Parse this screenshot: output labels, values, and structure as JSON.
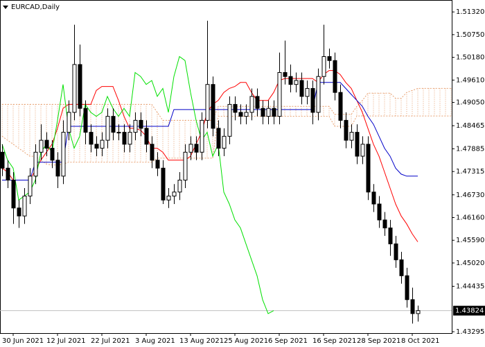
{
  "chart_data": {
    "type": "candlestick",
    "title": "EURCAD,Daily",
    "categories": [
      null,
      null,
      "30 Jun 2021",
      null,
      null,
      null,
      null,
      null,
      null,
      null,
      "12 Jul 2021",
      null,
      null,
      null,
      null,
      null,
      null,
      null,
      "22 Jul 2021",
      null,
      null,
      null,
      null,
      null,
      null,
      null,
      "3 Aug 2021",
      null,
      null,
      null,
      null,
      null,
      null,
      null,
      "13 Aug 2021",
      null,
      null,
      null,
      null,
      null,
      null,
      null,
      "25 Aug 2021",
      null,
      null,
      null,
      null,
      null,
      null,
      null,
      "6 Sep 2021",
      null,
      null,
      null,
      null,
      null,
      null,
      null,
      "16 Sep 2021",
      null,
      null,
      null,
      null,
      null,
      null,
      null,
      "28 Sep 2021",
      null,
      null,
      null,
      null,
      null,
      null,
      null,
      "8 Oct 2021",
      null,
      null,
      null,
      null,
      null,
      null,
      null
    ],
    "open": [
      1.478,
      1.474,
      1.471,
      1.464,
      1.462,
      1.467,
      1.472,
      1.478,
      1.481,
      1.479,
      1.476,
      1.472,
      1.483,
      1.488,
      1.5,
      1.489,
      1.483,
      1.48,
      1.479,
      1.481,
      1.487,
      1.483,
      1.483,
      1.48,
      1.483,
      1.486,
      1.484,
      1.48,
      1.476,
      1.474,
      1.466,
      1.467,
      1.468,
      1.471,
      1.478,
      1.48,
      1.478,
      1.486,
      1.495,
      1.484,
      1.479,
      1.482,
      1.49,
      1.488,
      1.487,
      1.488,
      1.492,
      1.489,
      1.487,
      1.489,
      1.487,
      1.498,
      1.497,
      1.495,
      1.496,
      1.492,
      1.494,
      1.488,
      1.497,
      1.502,
      1.501,
      1.493,
      1.486,
      1.481,
      1.483,
      1.477,
      1.48,
      1.468,
      1.465,
      1.461,
      1.459,
      1.455,
      1.451,
      1.447,
      1.441,
      1.4375,
      null,
      null,
      null,
      null,
      null,
      null
    ],
    "high": [
      1.48,
      1.476,
      1.473,
      1.466,
      1.469,
      1.474,
      1.48,
      1.485,
      1.483,
      1.481,
      1.478,
      1.486,
      1.491,
      1.51,
      1.505,
      1.491,
      1.485,
      1.482,
      1.483,
      1.489,
      1.489,
      1.485,
      1.485,
      1.485,
      1.488,
      1.488,
      1.486,
      1.482,
      1.478,
      1.476,
      1.469,
      1.47,
      1.473,
      1.48,
      1.482,
      1.482,
      1.488,
      1.511,
      1.497,
      1.486,
      1.484,
      1.492,
      1.492,
      1.49,
      1.49,
      1.494,
      1.494,
      1.491,
      1.491,
      1.491,
      1.503,
      1.506,
      1.5,
      1.498,
      1.498,
      1.496,
      1.496,
      1.499,
      1.51,
      1.504,
      1.503,
      1.495,
      1.488,
      1.485,
      1.485,
      1.482,
      1.482,
      1.47,
      1.467,
      1.463,
      1.461,
      1.457,
      1.453,
      1.449,
      1.444,
      1.4395,
      null,
      null,
      null,
      null,
      null,
      null
    ],
    "low": [
      1.472,
      1.469,
      1.46,
      1.459,
      1.46,
      1.465,
      1.47,
      1.476,
      1.477,
      1.474,
      1.469,
      1.47,
      1.481,
      1.486,
      1.487,
      1.48,
      1.478,
      1.477,
      1.477,
      1.479,
      1.481,
      1.481,
      1.478,
      1.478,
      1.481,
      1.482,
      1.478,
      1.474,
      1.472,
      1.465,
      1.464,
      1.465,
      1.466,
      1.469,
      1.476,
      1.476,
      1.476,
      1.484,
      1.482,
      1.477,
      1.477,
      1.48,
      1.486,
      1.485,
      1.485,
      1.486,
      1.487,
      1.485,
      1.485,
      1.485,
      1.485,
      1.495,
      1.493,
      1.493,
      1.49,
      1.49,
      1.485,
      1.486,
      1.495,
      1.499,
      1.491,
      1.484,
      1.479,
      1.479,
      1.475,
      1.475,
      1.466,
      1.463,
      1.459,
      1.457,
      1.452,
      1.449,
      1.445,
      1.439,
      1.435,
      1.4355,
      null,
      null,
      null,
      null,
      null,
      null
    ],
    "close": [
      1.474,
      1.471,
      1.464,
      1.462,
      1.467,
      1.472,
      1.478,
      1.481,
      1.479,
      1.476,
      1.472,
      1.483,
      1.488,
      1.5,
      1.489,
      1.483,
      1.48,
      1.479,
      1.481,
      1.487,
      1.483,
      1.483,
      1.48,
      1.483,
      1.486,
      1.484,
      1.48,
      1.476,
      1.474,
      1.466,
      1.467,
      1.468,
      1.471,
      1.478,
      1.48,
      1.478,
      1.486,
      1.495,
      1.484,
      1.479,
      1.482,
      1.49,
      1.488,
      1.487,
      1.488,
      1.492,
      1.489,
      1.487,
      1.489,
      1.487,
      1.498,
      1.497,
      1.495,
      1.496,
      1.492,
      1.494,
      1.488,
      1.497,
      1.502,
      1.501,
      1.493,
      1.486,
      1.481,
      1.483,
      1.477,
      1.48,
      1.468,
      1.465,
      1.461,
      1.459,
      1.455,
      1.451,
      1.447,
      1.441,
      1.4375,
      1.43824,
      null,
      null,
      null,
      null,
      null,
      null
    ],
    "up_color": "#ffffff",
    "down_color": "#000000",
    "lines": [
      {
        "color": "#ff0000",
        "values": [
          1.474,
          1.473,
          1.471,
          1.471,
          1.471,
          1.471,
          1.4735,
          1.476,
          1.478,
          1.48,
          1.484,
          1.489,
          1.49,
          1.49,
          1.49,
          1.49,
          1.49,
          1.4935,
          1.4945,
          1.4945,
          1.4945,
          1.491,
          1.487,
          1.484,
          1.484,
          1.4835,
          1.482,
          1.479,
          1.479,
          1.478,
          1.476,
          1.476,
          1.476,
          1.476,
          1.477,
          1.48,
          1.483,
          1.488,
          1.49,
          1.491,
          1.493,
          1.494,
          1.4945,
          1.4955,
          1.4955,
          1.493,
          1.491,
          1.491,
          1.491,
          1.493,
          1.496,
          1.4965,
          1.4965,
          1.4965,
          1.4965,
          1.4965,
          1.4965,
          1.4955,
          1.4975,
          1.4985,
          1.4985,
          1.4975,
          1.4955,
          1.494,
          1.491,
          1.488,
          1.484,
          1.48,
          1.477,
          1.473,
          1.469,
          1.465,
          1.462,
          1.46,
          1.4575,
          1.4555,
          null,
          null,
          null,
          null,
          null,
          null
        ]
      },
      {
        "color": "#0000c8",
        "values": [
          1.471,
          1.471,
          1.471,
          1.471,
          1.471,
          1.471,
          1.4755,
          1.4755,
          1.4755,
          1.4755,
          1.4755,
          1.4755,
          1.4845,
          1.4845,
          1.4845,
          1.4845,
          1.4845,
          1.4845,
          1.4845,
          1.4845,
          1.4845,
          1.4845,
          1.4845,
          1.4845,
          1.4845,
          1.4845,
          1.4845,
          1.4845,
          1.4845,
          1.4845,
          1.4845,
          1.4887,
          1.4887,
          1.4887,
          1.4887,
          1.4887,
          1.4887,
          1.4887,
          1.4887,
          1.4887,
          1.4887,
          1.4887,
          1.4887,
          1.4887,
          1.4887,
          1.4887,
          1.4887,
          1.4887,
          1.4887,
          1.4887,
          1.4887,
          1.4887,
          1.4887,
          1.4887,
          1.4887,
          1.4887,
          1.4887,
          1.4955,
          1.4955,
          1.4955,
          1.4955,
          1.4955,
          1.494,
          1.4925,
          1.491,
          1.4895,
          1.487,
          1.485,
          1.482,
          1.479,
          1.477,
          1.474,
          1.4725,
          1.472,
          1.472,
          1.472,
          null,
          null,
          null,
          null,
          null,
          null
        ]
      },
      {
        "color": "#00e000",
        "values": [
          1.48,
          1.476,
          1.474,
          1.466,
          1.467,
          1.468,
          1.471,
          1.478,
          1.48,
          1.478,
          1.486,
          1.495,
          1.484,
          1.479,
          1.482,
          1.49,
          1.488,
          1.487,
          1.488,
          1.492,
          1.489,
          1.487,
          1.489,
          1.487,
          1.498,
          1.497,
          1.495,
          1.496,
          1.492,
          1.494,
          1.488,
          1.497,
          1.502,
          1.501,
          1.493,
          1.486,
          1.481,
          1.483,
          1.477,
          1.48,
          1.468,
          1.465,
          1.461,
          1.459,
          1.455,
          1.451,
          1.447,
          1.441,
          1.4375,
          1.43824,
          null,
          null,
          null,
          null,
          null,
          null,
          null,
          null,
          null,
          null,
          null,
          null,
          null,
          null,
          null,
          null,
          null,
          null,
          null,
          null,
          null,
          null,
          null,
          null,
          null,
          null,
          null,
          null,
          null,
          null,
          null,
          null
        ]
      }
    ],
    "cloud": {
      "color": "#e8a070",
      "upper": [
        1.49,
        1.49,
        1.49,
        1.49,
        1.49,
        1.49,
        1.49,
        1.49,
        1.49,
        1.49,
        1.49,
        1.49,
        1.49,
        1.49,
        1.49,
        1.49,
        1.49,
        1.49,
        1.49,
        1.49,
        1.49,
        1.49,
        1.49,
        1.49,
        1.49,
        1.49,
        1.49,
        1.49,
        1.488,
        1.486,
        1.486,
        1.486,
        1.486,
        1.486,
        1.486,
        1.486,
        1.486,
        1.486,
        1.486,
        1.4895,
        1.4895,
        1.4895,
        1.4895,
        1.4895,
        1.4895,
        1.4895,
        1.4895,
        1.4895,
        1.4895,
        1.4895,
        1.4895,
        1.4895,
        1.4895,
        1.4895,
        1.4895,
        1.4895,
        1.4895,
        1.4895,
        1.4895,
        1.4895,
        1.4875,
        1.4875,
        1.4875,
        1.4875,
        1.4895,
        1.491,
        1.4928,
        1.4928,
        1.4928,
        1.4928,
        1.4928,
        1.4915,
        1.4915,
        1.493,
        1.4935,
        1.494,
        1.494,
        1.494,
        1.494,
        1.494,
        1.494,
        1.494
      ],
      "lower": [
        1.482,
        1.481,
        1.48,
        1.479,
        1.478,
        1.477,
        1.477,
        1.476,
        1.475,
        1.4748,
        1.4748,
        1.475,
        1.4755,
        1.4755,
        1.4755,
        1.4755,
        1.4755,
        1.4755,
        1.4755,
        1.4755,
        1.4755,
        1.4755,
        1.4755,
        1.4755,
        1.4755,
        1.4755,
        1.4755,
        1.4755,
        1.4765,
        1.4765,
        1.4765,
        1.4765,
        1.4765,
        1.4765,
        1.4765,
        1.4765,
        1.4765,
        1.4765,
        1.4765,
        1.487,
        1.487,
        1.487,
        1.487,
        1.487,
        1.487,
        1.487,
        1.487,
        1.487,
        1.487,
        1.487,
        1.487,
        1.487,
        1.487,
        1.487,
        1.487,
        1.487,
        1.487,
        1.487,
        1.487,
        1.487,
        1.4845,
        1.4845,
        1.4845,
        1.4845,
        1.4871,
        1.4871,
        1.4871,
        1.4871,
        1.4871,
        1.4871,
        1.4871,
        1.4871,
        1.4871,
        1.4871,
        1.4871,
        1.4871,
        1.4871,
        1.4871,
        1.4871,
        1.4871,
        1.4871,
        1.4871
      ]
    },
    "last_price": {
      "value": 1.43824,
      "label": "1.43824"
    },
    "ylim": [
      1.43295,
      1.5148
    ],
    "yticks": [
      {
        "value": 1.5132,
        "label": "1.51320"
      },
      {
        "value": 1.5075,
        "label": "1.50750"
      },
      {
        "value": 1.5018,
        "label": "1.50180"
      },
      {
        "value": 1.4961,
        "label": "1.49610"
      },
      {
        "value": 1.4905,
        "label": "1.49050"
      },
      1.48465,
      1.47885,
      1.47315,
      {
        "value": 1.4673,
        "label": "1.46730"
      },
      {
        "value": 1.4616,
        "label": "1.46160"
      },
      {
        "value": 1.4559,
        "label": "1.45590"
      },
      {
        "value": 1.4502,
        "label": "1.45020"
      },
      1.44435,
      1.43295
    ],
    "grid": false
  }
}
